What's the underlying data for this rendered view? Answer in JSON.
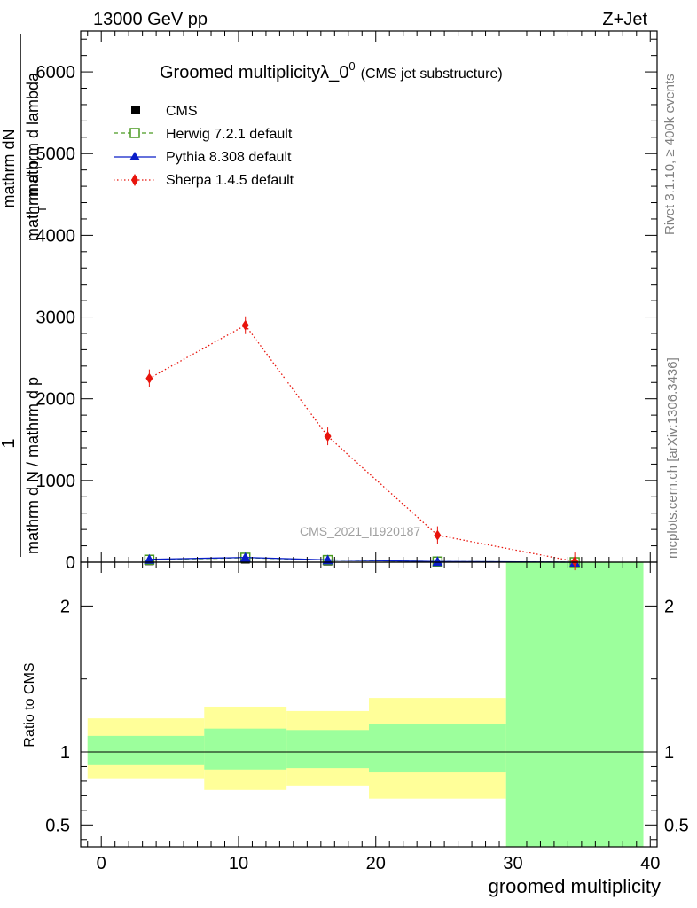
{
  "header": {
    "energy": "13000 GeV pp",
    "process": "Z+Jet",
    "rivet": "Rivet 3.1.10, ≥ 400k events",
    "site": "mcplots.cern.ch [arXiv:1306.3436]",
    "watermark": "CMS_2021_I1920187"
  },
  "chart_data": {
    "type": "line",
    "title": "Groomed multiplicity",
    "title_symbol": "λ_0",
    "title_superscript": "0",
    "subtitle": "(CMS jet substructure)",
    "xlabel": "groomed multiplicity",
    "ylabel_main_numerator": "1",
    "ylabel_main_frac_numerator": "mathrm dN",
    "ylabel_main_denominator": "mathrm d N / mathrm d p_T mathrm d p_T mathrm d lambda",
    "ylabel_main_lower": "mathrm d N / mathrm d p",
    "ylabel_main_upper": "mathrm d p",
    "ylabel_main_sub": "T",
    "ylabel_main_tail": "mathrm d lambda",
    "ylabel_ratio": "Ratio to CMS",
    "xlim": [
      -1.5,
      40.5
    ],
    "xticks": [
      0,
      10,
      20,
      30,
      40
    ],
    "ylim_main": [
      0,
      6500
    ],
    "yticks_main": [
      0,
      1000,
      2000,
      3000,
      4000,
      5000,
      6000
    ],
    "ylim_ratio": [
      0.35,
      2.3
    ],
    "yticks_ratio": [
      0.5,
      1,
      2
    ],
    "bins": [
      [
        -1,
        7.5
      ],
      [
        7.5,
        13.5
      ],
      [
        13.5,
        19.5
      ],
      [
        19.5,
        29.5
      ],
      [
        29.5,
        39.5
      ]
    ],
    "x": [
      3.5,
      10.5,
      16.5,
      24.5,
      34.5
    ],
    "series": [
      {
        "name": "CMS",
        "color": "#000000",
        "marker": "square-filled",
        "style": "none",
        "values": [
          18,
          38,
          14,
          4,
          0
        ]
      },
      {
        "name": "Herwig 7.2.1 default",
        "color": "#4a9a20",
        "marker": "square-open",
        "style": "dashed",
        "values": [
          30,
          55,
          26,
          8,
          0
        ]
      },
      {
        "name": "Pythia 8.308 default",
        "color": "#0a1ec8",
        "marker": "triangle",
        "style": "solid",
        "values": [
          35,
          58,
          28,
          8,
          0
        ]
      },
      {
        "name": "Sherpa 1.4.5 default",
        "color": "#e8140c",
        "marker": "diamond",
        "style": "dotted",
        "values": [
          2250,
          2900,
          1540,
          330,
          10
        ]
      }
    ],
    "ratio_band_stat": {
      "color": "#9cff9c",
      "lower": [
        0.91,
        0.88,
        0.89,
        0.86,
        0.35
      ],
      "upper": [
        1.11,
        1.16,
        1.15,
        1.19,
        2.3
      ]
    },
    "ratio_band_total": {
      "color": "#ffff99",
      "lower": [
        0.82,
        0.74,
        0.77,
        0.68,
        0.35
      ],
      "upper": [
        1.23,
        1.31,
        1.28,
        1.37,
        2.3
      ]
    }
  }
}
